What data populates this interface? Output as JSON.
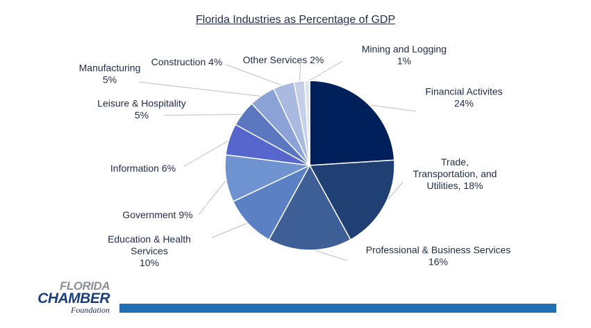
{
  "chart_data": {
    "type": "pie",
    "title": "Florida Industries as Percentage of GDP",
    "slices": [
      {
        "label": [
          "Financial Activites",
          "24%"
        ],
        "value": 24,
        "color": "#00205b"
      },
      {
        "label": [
          "Trade,",
          "Transportation, and",
          "Utilities, 18%"
        ],
        "value": 18,
        "color": "#203f73"
      },
      {
        "label": [
          "Professional & Business Services",
          "16%"
        ],
        "value": 16,
        "color": "#3e5e96"
      },
      {
        "label": [
          "Education & Health",
          "Services",
          "10%"
        ],
        "value": 10,
        "color": "#5b80c4"
      },
      {
        "label": [
          "Government 9%"
        ],
        "value": 9,
        "color": "#6f92d0"
      },
      {
        "label": [
          "Information 6%"
        ],
        "value": 6,
        "color": "#5666cc"
      },
      {
        "label": [
          "Leisure & Hospitality",
          "5%"
        ],
        "value": 5,
        "color": "#5b77c0"
      },
      {
        "label": [
          "Manufacturing",
          "5%"
        ],
        "value": 5,
        "color": "#8aa2d6"
      },
      {
        "label": [
          "Construction 4%"
        ],
        "value": 4,
        "color": "#aab9df"
      },
      {
        "label": [
          "Other Services 2%"
        ],
        "value": 2,
        "color": "#c5cfe8"
      },
      {
        "label": [
          "Mining and Logging",
          "1%"
        ],
        "value": 1,
        "color": "#dfe4f1"
      }
    ]
  },
  "logo": {
    "line1": "FLORIDA",
    "line2": "CHAMBER",
    "line3": "Foundation"
  }
}
